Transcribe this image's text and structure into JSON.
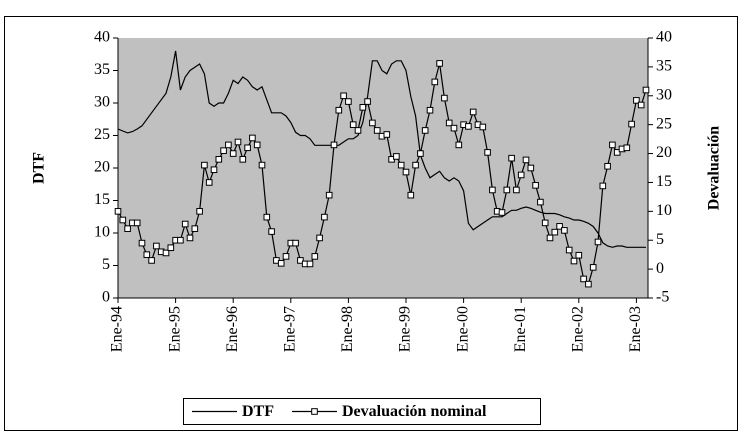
{
  "chart_data": {
    "type": "line",
    "categories": [
      "Ene-94",
      null,
      null,
      null,
      null,
      null,
      null,
      null,
      null,
      null,
      null,
      null,
      "Ene-95",
      null,
      null,
      null,
      null,
      null,
      null,
      null,
      null,
      null,
      null,
      null,
      "Ene-96",
      null,
      null,
      null,
      null,
      null,
      null,
      null,
      null,
      null,
      null,
      null,
      "Ene-97",
      null,
      null,
      null,
      null,
      null,
      null,
      null,
      null,
      null,
      null,
      null,
      "Ene-98",
      null,
      null,
      null,
      null,
      null,
      null,
      null,
      null,
      null,
      null,
      null,
      "Ene-99",
      null,
      null,
      null,
      null,
      null,
      null,
      null,
      null,
      null,
      null,
      null,
      "Ene-00",
      null,
      null,
      null,
      null,
      null,
      null,
      null,
      null,
      null,
      null,
      null,
      "Ene-01",
      null,
      null,
      null,
      null,
      null,
      null,
      null,
      null,
      null,
      null,
      null,
      "Ene-02",
      null,
      null,
      null,
      null,
      null,
      null,
      null,
      null,
      null,
      null,
      null,
      "Ene-03",
      null,
      null
    ],
    "series": [
      {
        "name": "DTF",
        "color": "#000000",
        "values": [
          26,
          25.7,
          25.4,
          25.6,
          26,
          26.5,
          27.5,
          28.5,
          29.5,
          30.5,
          31.5,
          34,
          38,
          32,
          34,
          35,
          35.5,
          36,
          34.5,
          30,
          29.5,
          30,
          30,
          31.5,
          33.5,
          33,
          34,
          33.5,
          32.5,
          32,
          32.5,
          30.5,
          28.5,
          28.5,
          28.5,
          28,
          27,
          25.5,
          25,
          25,
          24.5,
          23.5,
          23.5,
          23.5,
          23.5,
          23.5,
          23.5,
          24,
          24.5,
          24.5,
          25,
          27,
          31,
          36.5,
          36.5,
          35,
          34.5,
          36,
          36.5,
          36.5,
          35,
          31,
          28,
          22,
          20,
          18.5,
          19,
          19.5,
          18.5,
          18,
          18.5,
          18,
          16.5,
          11.5,
          10.5,
          11,
          11.5,
          12,
          12.5,
          12.5,
          12.5,
          13,
          13.5,
          13.5,
          13.8,
          14,
          13.8,
          13.5,
          13.2,
          13,
          13,
          13,
          12.8,
          12.5,
          12.3,
          12,
          12,
          11.8,
          11.5,
          11,
          10,
          8.5,
          8,
          7.8,
          8,
          8,
          7.8,
          7.8,
          7.8,
          7.8,
          7.8
        ]
      },
      {
        "name": "Devaluación nominal",
        "color": "#000000",
        "axis": "y2",
        "marker": "square",
        "values": [
          10,
          8.5,
          7,
          8,
          8,
          4.5,
          2.5,
          1.5,
          4,
          3,
          2.8,
          3.7,
          5,
          5,
          7.8,
          5.4,
          7,
          10,
          18,
          15,
          17.2,
          19,
          20.5,
          21.5,
          20,
          22,
          19,
          21,
          22.7,
          21.5,
          18,
          9,
          6.5,
          1.5,
          1,
          2.2,
          4.5,
          4.5,
          1.5,
          0.9,
          0.9,
          2.2,
          5.4,
          9,
          12.8,
          21.5,
          27.5,
          30,
          29,
          25,
          24,
          28,
          29,
          25.3,
          24,
          23,
          23.3,
          19,
          19.5,
          18,
          16.8,
          12.8,
          18,
          20,
          24,
          27.5,
          32.4,
          35.6,
          29.6,
          25.3,
          24.4,
          21.5,
          25,
          24.7,
          27.2,
          25,
          24.6,
          20.2,
          13.7,
          10,
          9.8,
          13.7,
          19.2,
          13.7,
          16.3,
          18.9,
          17.5,
          14.5,
          11.6,
          8,
          5.4,
          6.4,
          7.4,
          6.7,
          3.3,
          1.4,
          2.4,
          -1.7,
          -2.6,
          0.3,
          4.7,
          14.4,
          17.8,
          21.5,
          20.2,
          20.8,
          21,
          25.1,
          29.2,
          28.4,
          31
        ]
      }
    ],
    "ylabel": "DTF",
    "y2label": "Devaluación",
    "ylim": [
      0,
      40
    ],
    "yticks": [
      0,
      5,
      10,
      15,
      20,
      25,
      30,
      35,
      40
    ],
    "y2lim": [
      -5,
      40
    ],
    "y2ticks": [
      -5,
      0,
      5,
      10,
      15,
      20,
      25,
      30,
      35,
      40
    ],
    "plot_background": "#c0c0c0",
    "legend": "bottom"
  }
}
